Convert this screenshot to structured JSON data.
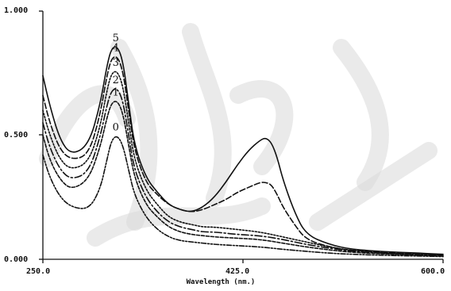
{
  "chart_data": {
    "type": "line",
    "title": "",
    "xlabel": "Wavelength (nm.)",
    "ylabel": "",
    "xlim": [
      250.0,
      600.0
    ],
    "ylim": [
      0.0,
      1.0
    ],
    "x_ticks": [
      "250.0",
      "425.0",
      "600.0"
    ],
    "y_ticks": [
      "0.000",
      "0.500",
      "1.000"
    ],
    "grid": false,
    "legend": "none",
    "series": [
      {
        "name": "5",
        "label": "5",
        "dash": "",
        "x": [
          250,
          256,
          265,
          275,
          290,
          300,
          306,
          310,
          315,
          320,
          325,
          330,
          340,
          350,
          360,
          370,
          380,
          390,
          400,
          410,
          420,
          430,
          440,
          445,
          450,
          455,
          460,
          470,
          480,
          500,
          520,
          550,
          580,
          600
        ],
        "y": [
          0.74,
          0.62,
          0.48,
          0.42,
          0.46,
          0.62,
          0.78,
          0.85,
          0.86,
          0.8,
          0.63,
          0.46,
          0.33,
          0.27,
          0.22,
          0.2,
          0.19,
          0.21,
          0.25,
          0.31,
          0.38,
          0.44,
          0.48,
          0.49,
          0.47,
          0.41,
          0.32,
          0.19,
          0.1,
          0.06,
          0.04,
          0.03,
          0.025,
          0.02
        ]
      },
      {
        "name": "4",
        "label": "4",
        "dash": "7 3",
        "x": [
          250,
          256,
          265,
          275,
          290,
          300,
          306,
          310,
          315,
          320,
          325,
          330,
          340,
          350,
          360,
          370,
          380,
          390,
          400,
          410,
          420,
          430,
          440,
          445,
          450,
          455,
          460,
          470,
          480,
          500,
          520,
          550,
          580,
          600
        ],
        "y": [
          0.66,
          0.55,
          0.44,
          0.4,
          0.42,
          0.58,
          0.74,
          0.81,
          0.82,
          0.76,
          0.6,
          0.44,
          0.31,
          0.26,
          0.22,
          0.2,
          0.19,
          0.2,
          0.22,
          0.24,
          0.27,
          0.29,
          0.31,
          0.31,
          0.3,
          0.26,
          0.21,
          0.14,
          0.08,
          0.05,
          0.035,
          0.028,
          0.022,
          0.018
        ]
      },
      {
        "name": "3",
        "label": "3",
        "dash": "2 2",
        "x": [
          250,
          256,
          265,
          275,
          290,
          300,
          306,
          310,
          315,
          320,
          325,
          330,
          340,
          350,
          360,
          370,
          380,
          390,
          400,
          420,
          440,
          460,
          480,
          500,
          520,
          550,
          580,
          600
        ],
        "y": [
          0.6,
          0.5,
          0.4,
          0.36,
          0.39,
          0.53,
          0.68,
          0.75,
          0.76,
          0.7,
          0.55,
          0.4,
          0.28,
          0.22,
          0.17,
          0.15,
          0.14,
          0.13,
          0.13,
          0.12,
          0.11,
          0.09,
          0.07,
          0.05,
          0.035,
          0.025,
          0.02,
          0.017
        ]
      },
      {
        "name": "2",
        "label": "2",
        "dash": "9 3 2 3",
        "x": [
          250,
          256,
          265,
          275,
          290,
          300,
          306,
          310,
          315,
          320,
          325,
          330,
          340,
          350,
          360,
          370,
          380,
          390,
          400,
          420,
          440,
          460,
          480,
          500,
          520,
          550,
          580,
          600
        ],
        "y": [
          0.55,
          0.45,
          0.36,
          0.32,
          0.35,
          0.49,
          0.62,
          0.68,
          0.69,
          0.64,
          0.5,
          0.36,
          0.25,
          0.19,
          0.15,
          0.13,
          0.12,
          0.11,
          0.11,
          0.1,
          0.095,
          0.08,
          0.06,
          0.045,
          0.032,
          0.024,
          0.018,
          0.015
        ]
      },
      {
        "name": "1",
        "label": "1",
        "dash": "4 2",
        "x": [
          250,
          256,
          265,
          275,
          290,
          300,
          306,
          310,
          315,
          320,
          325,
          330,
          340,
          350,
          360,
          370,
          380,
          390,
          400,
          420,
          440,
          460,
          480,
          500,
          520,
          550,
          580,
          600
        ],
        "y": [
          0.5,
          0.4,
          0.32,
          0.28,
          0.32,
          0.45,
          0.57,
          0.63,
          0.64,
          0.59,
          0.46,
          0.33,
          0.22,
          0.17,
          0.13,
          0.11,
          0.1,
          0.095,
          0.09,
          0.085,
          0.08,
          0.065,
          0.05,
          0.038,
          0.028,
          0.021,
          0.016,
          0.013
        ]
      },
      {
        "name": "0",
        "label": "0",
        "dash": "6 2 2 2 2 2",
        "x": [
          250,
          256,
          265,
          275,
          290,
          300,
          306,
          310,
          315,
          320,
          325,
          330,
          340,
          350,
          360,
          370,
          380,
          390,
          400,
          420,
          440,
          460,
          480,
          500,
          520,
          550,
          580,
          600
        ],
        "y": [
          0.42,
          0.33,
          0.25,
          0.21,
          0.2,
          0.28,
          0.4,
          0.48,
          0.5,
          0.46,
          0.36,
          0.26,
          0.17,
          0.12,
          0.09,
          0.075,
          0.07,
          0.065,
          0.06,
          0.055,
          0.05,
          0.04,
          0.032,
          0.025,
          0.02,
          0.016,
          0.013,
          0.011
        ]
      }
    ]
  }
}
